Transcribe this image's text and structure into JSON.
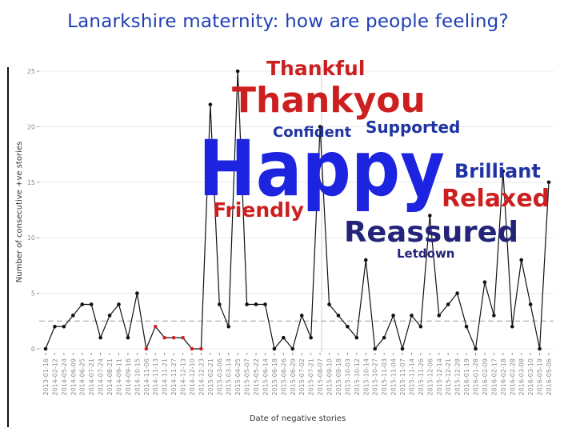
{
  "title": "Lanarkshire maternity: how are people feeling?",
  "chart_data": {
    "type": "line",
    "xlabel": "Date of negative stories",
    "ylabel": "Number of consecutive +ve stories",
    "ylim": [
      0,
      25
    ],
    "yticks": [
      "0",
      "5",
      "10",
      "15",
      "20",
      "25"
    ],
    "centerline": 2.5,
    "grid": true,
    "categories": [
      "2013-01-16",
      "2014-02-12",
      "2014-05-24",
      "2014-06-09",
      "2014-06-25",
      "2014-07-21",
      "2014-07-24",
      "2014-08-21",
      "2014-09-11",
      "2014-09-16",
      "2014-10-15",
      "2014-11-06",
      "2014-11-13",
      "2014-11-21",
      "2014-11-27",
      "2014-12-13",
      "2014-12-10",
      "2014-12-23",
      "2015-02-21",
      "2015-03-06",
      "2015-03-14",
      "2015-04-25",
      "2015-05-07",
      "2015-05-22",
      "2015-06-14",
      "2015-06-18",
      "2015-06-26",
      "2015-06-29",
      "2015-07-02",
      "2015-07-21",
      "2015-08-07",
      "2015-09-10",
      "2015-09-18",
      "2015-10-03",
      "2015-10-12",
      "2015-10-14",
      "2015-10-27",
      "2015-11-03",
      "2015-11-04",
      "2015-11-07",
      "2015-11-14",
      "2015-11-26",
      "2015-12-06",
      "2015-12-14",
      "2015-12-21",
      "2015-12-28",
      "2016-01-19",
      "2016-01-28",
      "2016-02-09",
      "2016-02-17",
      "2016-02-18",
      "2016-02-28",
      "2016-03-08",
      "2016-03-10",
      "2016-05-19",
      "2016-05-06"
    ],
    "series": [
      {
        "values": [
          0,
          2,
          2,
          3,
          4,
          4,
          1,
          3,
          4,
          1,
          5,
          0,
          2,
          1,
          1,
          1,
          0,
          0,
          22,
          4,
          2,
          25,
          4,
          4,
          4,
          0,
          1,
          0,
          3,
          1,
          20,
          4,
          3,
          2,
          1,
          8,
          0,
          1,
          3,
          0,
          3,
          2,
          12,
          3,
          4,
          5,
          2,
          0,
          6,
          3,
          16,
          2,
          8,
          4,
          0,
          15
        ],
        "red_points": [
          11,
          12,
          13,
          14,
          15,
          16,
          17
        ]
      }
    ]
  },
  "word_cloud": [
    {
      "word": "Thankful",
      "color": "#cc1f1f"
    },
    {
      "word": "Thankyou",
      "color": "#cc1f1f"
    },
    {
      "word": "Confident",
      "color": "#2033a3"
    },
    {
      "word": "Supported",
      "color": "#2033a3"
    },
    {
      "word": "Happy",
      "color": "#1c24e0"
    },
    {
      "word": "Brilliant",
      "color": "#2033a3"
    },
    {
      "word": "Relaxed",
      "color": "#cc1f1f"
    },
    {
      "word": "Friendly",
      "color": "#cc1f1f"
    },
    {
      "word": "Reassured",
      "color": "#23237a"
    },
    {
      "word": "Letdown",
      "color": "#23237a"
    }
  ]
}
